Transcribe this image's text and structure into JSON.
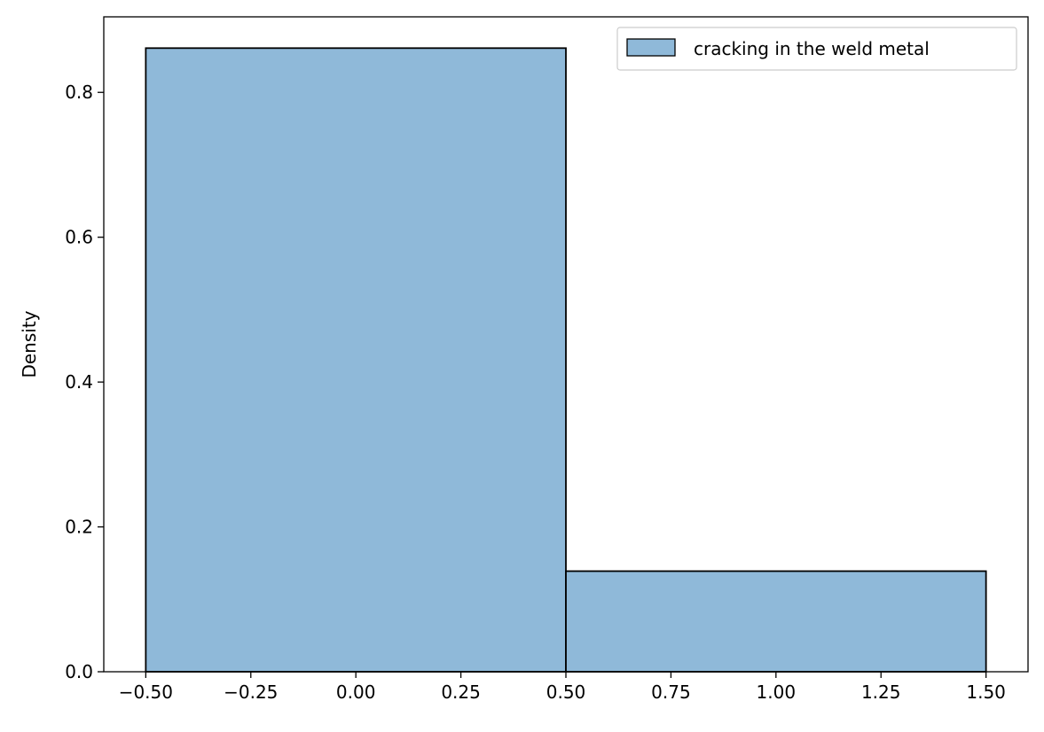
{
  "chart_data": {
    "type": "bar",
    "title": "",
    "xlabel": "",
    "ylabel": "Density",
    "xlim": [
      -0.6,
      1.6
    ],
    "ylim": [
      0,
      0.9043
    ],
    "bins": [
      {
        "x0": -0.5,
        "x1": 0.5,
        "value": 0.8611
      },
      {
        "x0": 0.5,
        "x1": 1.5,
        "value": 0.1389
      }
    ],
    "x_ticks": [
      {
        "value": -0.5,
        "label": "−0.50"
      },
      {
        "value": -0.25,
        "label": "−0.25"
      },
      {
        "value": 0.0,
        "label": "0.00"
      },
      {
        "value": 0.25,
        "label": "0.25"
      },
      {
        "value": 0.5,
        "label": "0.50"
      },
      {
        "value": 0.75,
        "label": "0.75"
      },
      {
        "value": 1.0,
        "label": "1.00"
      },
      {
        "value": 1.25,
        "label": "1.25"
      },
      {
        "value": 1.5,
        "label": "1.50"
      }
    ],
    "y_ticks": [
      {
        "value": 0.0,
        "label": "0.0"
      },
      {
        "value": 0.2,
        "label": "0.2"
      },
      {
        "value": 0.4,
        "label": "0.4"
      },
      {
        "value": 0.6,
        "label": "0.6"
      },
      {
        "value": 0.8,
        "label": "0.8"
      }
    ],
    "legend": {
      "placement": "top-right",
      "entries": [
        {
          "label": "cracking in the weld metal",
          "color": "#8fb9d9"
        }
      ]
    },
    "colors": {
      "bar_fill": "#8fb9d9",
      "bar_edge": "#000000"
    },
    "grid": false
  }
}
